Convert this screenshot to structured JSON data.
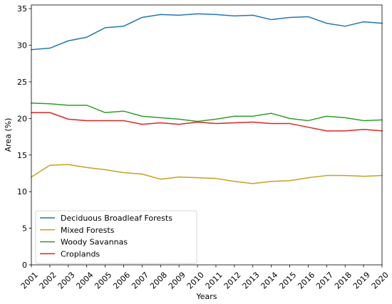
{
  "chart_data": {
    "type": "line",
    "title": "",
    "xlabel": "Years",
    "ylabel": "Area (%)",
    "x": [
      "2001",
      "2002",
      "2003",
      "2004",
      "2005",
      "2006",
      "2007",
      "2008",
      "2009",
      "2010",
      "2011",
      "2012",
      "2013",
      "2014",
      "2015",
      "2016",
      "2017",
      "2018",
      "2019",
      "2020"
    ],
    "xlim": [
      2001,
      2020
    ],
    "ylim": [
      0,
      35.5
    ],
    "yticks": [
      0,
      5,
      10,
      15,
      20,
      25,
      30,
      35
    ],
    "grid": false,
    "legend_position": "bottom-left",
    "series": [
      {
        "name": "Deciduous Broadleaf Forests",
        "color": "#1f77b4",
        "values": [
          29.4,
          29.6,
          30.6,
          31.1,
          32.4,
          32.6,
          33.8,
          34.2,
          34.1,
          34.3,
          34.2,
          34.0,
          34.1,
          33.5,
          33.8,
          33.9,
          33.0,
          32.6,
          33.2,
          33.0
        ]
      },
      {
        "name": "Mixed Forests",
        "color": "#c8a01e",
        "values": [
          12.0,
          13.6,
          13.7,
          13.3,
          13.0,
          12.6,
          12.4,
          11.7,
          12.0,
          11.9,
          11.8,
          11.4,
          11.1,
          11.4,
          11.5,
          11.9,
          12.2,
          12.2,
          12.1,
          12.2
        ]
      },
      {
        "name": "Woody Savannas",
        "color": "#2ca02c",
        "values": [
          22.1,
          22.0,
          21.8,
          21.8,
          20.8,
          21.0,
          20.3,
          20.1,
          19.9,
          19.6,
          19.9,
          20.3,
          20.3,
          20.7,
          20.0,
          19.7,
          20.3,
          20.1,
          19.7,
          19.8
        ]
      },
      {
        "name": "Croplands",
        "color": "#d62728",
        "values": [
          20.8,
          20.8,
          19.9,
          19.7,
          19.7,
          19.7,
          19.2,
          19.4,
          19.2,
          19.5,
          19.3,
          19.4,
          19.5,
          19.3,
          19.3,
          18.8,
          18.3,
          18.3,
          18.5,
          18.3
        ]
      }
    ]
  }
}
